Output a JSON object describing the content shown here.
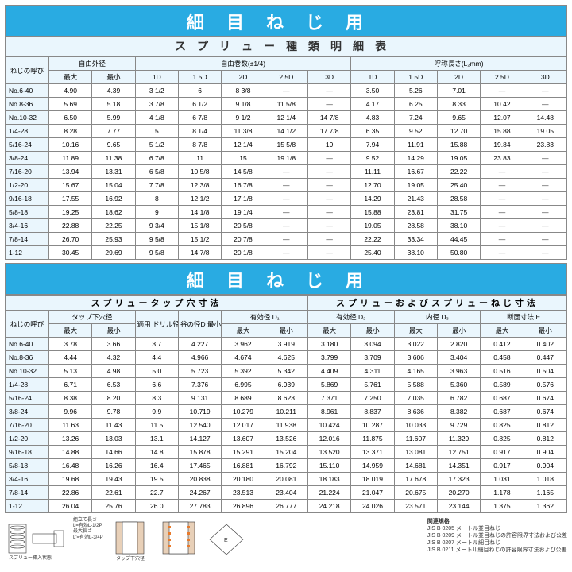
{
  "colors": {
    "band_bg": "#29abe2",
    "sub_bg": "#eaf6fd",
    "border": "#888888",
    "text": "#333333"
  },
  "band1_title": "細目ねじ用",
  "band1_subtitle": "スプリュー種類明細表",
  "band2_title": "細目ねじ用",
  "table1": {
    "group_headers": {
      "name": "ねじの呼び",
      "od": "自由外径",
      "turns": "自由巻数(±1/4)",
      "len": "呼称長さ(L₂mm)"
    },
    "sub_headers_od": [
      "最大",
      "最小"
    ],
    "sub_headers_turns": [
      "1D",
      "1.5D",
      "2D",
      "2.5D",
      "3D"
    ],
    "sub_headers_len": [
      "1D",
      "1.5D",
      "2D",
      "2.5D",
      "3D"
    ],
    "rows": [
      {
        "n": "No.6-40",
        "od": [
          "4.90",
          "4.39"
        ],
        "t": [
          "3 1/2",
          "6",
          "8 3/8",
          "—",
          "—"
        ],
        "l": [
          "3.50",
          "5.26",
          "7.01",
          "—",
          "—"
        ]
      },
      {
        "n": "No.8-36",
        "od": [
          "5.69",
          "5.18"
        ],
        "t": [
          "3 7/8",
          "6 1/2",
          "9 1/8",
          "11 5/8",
          "—"
        ],
        "l": [
          "4.17",
          "6.25",
          "8.33",
          "10.42",
          "—"
        ]
      },
      {
        "n": "No.10-32",
        "od": [
          "6.50",
          "5.99"
        ],
        "t": [
          "4 1/8",
          "6 7/8",
          "9 1/2",
          "12 1/4",
          "14 7/8"
        ],
        "l": [
          "4.83",
          "7.24",
          "9.65",
          "12.07",
          "14.48"
        ]
      },
      {
        "n": "1/4-28",
        "od": [
          "8.28",
          "7.77"
        ],
        "t": [
          "5",
          "8 1/4",
          "11 3/8",
          "14 1/2",
          "17 7/8"
        ],
        "l": [
          "6.35",
          "9.52",
          "12.70",
          "15.88",
          "19.05"
        ]
      },
      {
        "n": "5/16-24",
        "od": [
          "10.16",
          "9.65"
        ],
        "t": [
          "5 1/2",
          "8 7/8",
          "12 1/4",
          "15 5/8",
          "19"
        ],
        "l": [
          "7.94",
          "11.91",
          "15.88",
          "19.84",
          "23.83"
        ]
      },
      {
        "n": "3/8-24",
        "od": [
          "11.89",
          "11.38"
        ],
        "t": [
          "6 7/8",
          "11",
          "15",
          "19 1/8",
          "—"
        ],
        "l": [
          "9.52",
          "14.29",
          "19.05",
          "23.83",
          "—"
        ]
      },
      {
        "n": "7/16-20",
        "od": [
          "13.94",
          "13.31"
        ],
        "t": [
          "6 5/8",
          "10 5/8",
          "14 5/8",
          "—",
          "—"
        ],
        "l": [
          "11.11",
          "16.67",
          "22.22",
          "—",
          "—"
        ]
      },
      {
        "n": "1/2-20",
        "od": [
          "15.67",
          "15.04"
        ],
        "t": [
          "7 7/8",
          "12 3/8",
          "16 7/8",
          "—",
          "—"
        ],
        "l": [
          "12.70",
          "19.05",
          "25.40",
          "—",
          "—"
        ]
      },
      {
        "n": "9/16-18",
        "od": [
          "17.55",
          "16.92"
        ],
        "t": [
          "8",
          "12 1/2",
          "17 1/8",
          "—",
          "—"
        ],
        "l": [
          "14.29",
          "21.43",
          "28.58",
          "—",
          "—"
        ]
      },
      {
        "n": "5/8-18",
        "od": [
          "19.25",
          "18.62"
        ],
        "t": [
          "9",
          "14 1/8",
          "19 1/4",
          "—",
          "—"
        ],
        "l": [
          "15.88",
          "23.81",
          "31.75",
          "—",
          "—"
        ]
      },
      {
        "n": "3/4-16",
        "od": [
          "22.88",
          "22.25"
        ],
        "t": [
          "9 3/4",
          "15 1/8",
          "20 5/8",
          "—",
          "—"
        ],
        "l": [
          "19.05",
          "28.58",
          "38.10",
          "—",
          "—"
        ]
      },
      {
        "n": "7/8-14",
        "od": [
          "26.70",
          "25.93"
        ],
        "t": [
          "9 5/8",
          "15 1/2",
          "20 7/8",
          "—",
          "—"
        ],
        "l": [
          "22.22",
          "33.34",
          "44.45",
          "—",
          "—"
        ]
      },
      {
        "n": "1-12",
        "od": [
          "30.45",
          "29.69"
        ],
        "t": [
          "9 5/8",
          "14 7/8",
          "20 1/8",
          "—",
          "—"
        ],
        "l": [
          "25.40",
          "38.10",
          "50.80",
          "—",
          "—"
        ]
      }
    ]
  },
  "table2": {
    "left_group_title": "スプリュータップ穴寸法",
    "right_group_title": "スプリューおよびスプリューねじ寸法",
    "group_headers": {
      "name": "ねじの呼び",
      "taphole": "タップ下穴径",
      "drill": "適用\nドリル径",
      "root": "谷の径D\n最小",
      "eff_d1": "有効径 D₁",
      "eff_d2": "有効径 D₂",
      "inner_d3": "内径 D₃",
      "sec_e": "断面寸法 E"
    },
    "sub_headers_pair": [
      "最大",
      "最小"
    ],
    "rows": [
      {
        "n": "No.6-40",
        "v": [
          "3.78",
          "3.66",
          "3.7",
          "4.227",
          "3.962",
          "3.919",
          "3.180",
          "3.094",
          "3.022",
          "2.820",
          "0.412",
          "0.402"
        ]
      },
      {
        "n": "No.8-36",
        "v": [
          "4.44",
          "4.32",
          "4.4",
          "4.966",
          "4.674",
          "4.625",
          "3.799",
          "3.709",
          "3.606",
          "3.404",
          "0.458",
          "0.447"
        ]
      },
      {
        "n": "No.10-32",
        "v": [
          "5.13",
          "4.98",
          "5.0",
          "5.723",
          "5.392",
          "5.342",
          "4.409",
          "4.311",
          "4.165",
          "3.963",
          "0.516",
          "0.504"
        ]
      },
      {
        "n": "1/4-28",
        "v": [
          "6.71",
          "6.53",
          "6.6",
          "7.376",
          "6.995",
          "6.939",
          "5.869",
          "5.761",
          "5.588",
          "5.360",
          "0.589",
          "0.576"
        ]
      },
      {
        "n": "5/16-24",
        "v": [
          "8.38",
          "8.20",
          "8.3",
          "9.131",
          "8.689",
          "8.623",
          "7.371",
          "7.250",
          "7.035",
          "6.782",
          "0.687",
          "0.674"
        ]
      },
      {
        "n": "3/8-24",
        "v": [
          "9.96",
          "9.78",
          "9.9",
          "10.719",
          "10.279",
          "10.211",
          "8.961",
          "8.837",
          "8.636",
          "8.382",
          "0.687",
          "0.674"
        ]
      },
      {
        "n": "7/16-20",
        "v": [
          "11.63",
          "11.43",
          "11.5",
          "12.540",
          "12.017",
          "11.938",
          "10.424",
          "10.287",
          "10.033",
          "9.729",
          "0.825",
          "0.812"
        ]
      },
      {
        "n": "1/2-20",
        "v": [
          "13.26",
          "13.03",
          "13.1",
          "14.127",
          "13.607",
          "13.526",
          "12.016",
          "11.875",
          "11.607",
          "11.329",
          "0.825",
          "0.812"
        ]
      },
      {
        "n": "9/16-18",
        "v": [
          "14.88",
          "14.66",
          "14.8",
          "15.878",
          "15.291",
          "15.204",
          "13.520",
          "13.371",
          "13.081",
          "12.751",
          "0.917",
          "0.904"
        ]
      },
      {
        "n": "5/8-18",
        "v": [
          "16.48",
          "16.26",
          "16.4",
          "17.465",
          "16.881",
          "16.792",
          "15.110",
          "14.959",
          "14.681",
          "14.351",
          "0.917",
          "0.904"
        ]
      },
      {
        "n": "3/4-16",
        "v": [
          "19.68",
          "19.43",
          "19.5",
          "20.838",
          "20.180",
          "20.081",
          "18.183",
          "18.019",
          "17.678",
          "17.323",
          "1.031",
          "1.018"
        ]
      },
      {
        "n": "7/8-14",
        "v": [
          "22.86",
          "22.61",
          "22.7",
          "24.267",
          "23.513",
          "23.404",
          "21.224",
          "21.047",
          "20.675",
          "20.270",
          "1.178",
          "1.165"
        ]
      },
      {
        "n": "1-12",
        "v": [
          "26.04",
          "25.76",
          "26.0",
          "27.783",
          "26.896",
          "26.777",
          "24.218",
          "24.026",
          "23.571",
          "23.144",
          "1.375",
          "1.362"
        ]
      }
    ]
  },
  "footer": {
    "left_caption": "スプリュー挿入状態",
    "mid_caption": "タップ下穴径",
    "mid_text1": "組立て長さ",
    "mid_text2": "L=有効L-1/2P",
    "mid_text3": "最大長さ",
    "mid_text4": "L'=有効L-3/4P",
    "right_title": "関連規格",
    "right_lines": [
      "JIS B 0205 メートル並目ねじ",
      "JIS B 0209 メートル並目ねじの許容限界寸法および公差",
      "JIS B 0207 メートル細目ねじ",
      "JIS B 0211 メートル細目ねじの許容限界寸法および公差"
    ]
  }
}
